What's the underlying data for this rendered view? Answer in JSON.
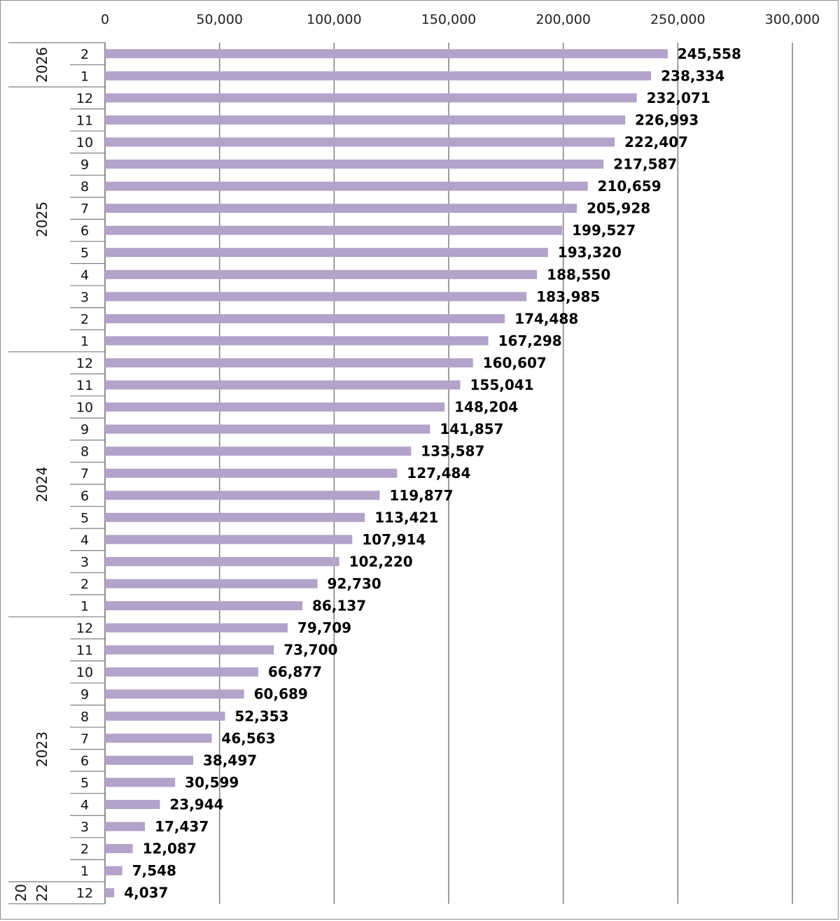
{
  "chart_data": {
    "type": "bar",
    "orientation": "horizontal",
    "title": "",
    "xlabel": "",
    "ylabel": "",
    "xlim": [
      0,
      300000
    ],
    "x_ticks": [
      0,
      50000,
      100000,
      150000,
      200000,
      250000,
      300000
    ],
    "x_tick_labels": [
      "0",
      "50,000",
      "100,000",
      "150,000",
      "200,000",
      "250,000",
      "300,000"
    ],
    "grid": true,
    "bar_color": "#b3a2c9",
    "year_groups": [
      {
        "year": "2026",
        "lines": [
          "2026"
        ],
        "categories": [
          {
            "month": "2",
            "value": 245558,
            "label": "245,558"
          },
          {
            "month": "1",
            "value": 238334,
            "label": "238,334"
          }
        ]
      },
      {
        "year": "2025",
        "lines": [
          "2025"
        ],
        "categories": [
          {
            "month": "12",
            "value": 232071,
            "label": "232,071"
          },
          {
            "month": "11",
            "value": 226993,
            "label": "226,993"
          },
          {
            "month": "10",
            "value": 222407,
            "label": "222,407"
          },
          {
            "month": "9",
            "value": 217587,
            "label": "217,587"
          },
          {
            "month": "8",
            "value": 210659,
            "label": "210,659"
          },
          {
            "month": "7",
            "value": 205928,
            "label": "205,928"
          },
          {
            "month": "6",
            "value": 199527,
            "label": "199,527"
          },
          {
            "month": "5",
            "value": 193320,
            "label": "193,320"
          },
          {
            "month": "4",
            "value": 188550,
            "label": "188,550"
          },
          {
            "month": "3",
            "value": 183985,
            "label": "183,985"
          },
          {
            "month": "2",
            "value": 174488,
            "label": "174,488"
          },
          {
            "month": "1",
            "value": 167298,
            "label": "167,298"
          }
        ]
      },
      {
        "year": "2024",
        "lines": [
          "2024"
        ],
        "categories": [
          {
            "month": "12",
            "value": 160607,
            "label": "160,607"
          },
          {
            "month": "11",
            "value": 155041,
            "label": "155,041"
          },
          {
            "month": "10",
            "value": 148204,
            "label": "148,204"
          },
          {
            "month": "9",
            "value": 141857,
            "label": "141,857"
          },
          {
            "month": "8",
            "value": 133587,
            "label": "133,587"
          },
          {
            "month": "7",
            "value": 127484,
            "label": "127,484"
          },
          {
            "month": "6",
            "value": 119877,
            "label": "119,877"
          },
          {
            "month": "5",
            "value": 113421,
            "label": "113,421"
          },
          {
            "month": "4",
            "value": 107914,
            "label": "107,914"
          },
          {
            "month": "3",
            "value": 102220,
            "label": "102,220"
          },
          {
            "month": "2",
            "value": 92730,
            "label": "92,730"
          },
          {
            "month": "1",
            "value": 86137,
            "label": "86,137"
          }
        ]
      },
      {
        "year": "2023",
        "lines": [
          "2023"
        ],
        "categories": [
          {
            "month": "12",
            "value": 79709,
            "label": "79,709"
          },
          {
            "month": "11",
            "value": 73700,
            "label": "73,700"
          },
          {
            "month": "10",
            "value": 66877,
            "label": "66,877"
          },
          {
            "month": "9",
            "value": 60689,
            "label": "60,689"
          },
          {
            "month": "8",
            "value": 52353,
            "label": "52,353"
          },
          {
            "month": "7",
            "value": 46563,
            "label": "46,563"
          },
          {
            "month": "6",
            "value": 38497,
            "label": "38,497"
          },
          {
            "month": "5",
            "value": 30599,
            "label": "30,599"
          },
          {
            "month": "4",
            "value": 23944,
            "label": "23,944"
          },
          {
            "month": "3",
            "value": 17437,
            "label": "17,437"
          },
          {
            "month": "2",
            "value": 12087,
            "label": "12,087"
          },
          {
            "month": "1",
            "value": 7548,
            "label": "7,548"
          }
        ]
      },
      {
        "year": "2022",
        "lines": [
          "20",
          "22"
        ],
        "categories": [
          {
            "month": "12",
            "value": 4037,
            "label": "4,037"
          }
        ]
      }
    ]
  }
}
